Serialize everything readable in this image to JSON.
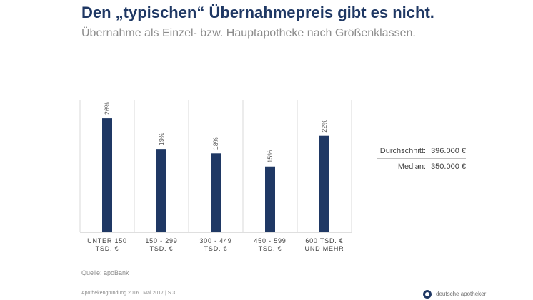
{
  "slide": {
    "title": "Den „typischen“ Übernahmepreis gibt es nicht.",
    "subtitle": "Übernahme als Einzel- bzw. Hauptapotheke nach Größenklassen."
  },
  "chart_data": {
    "type": "bar",
    "title": "",
    "xlabel": "",
    "ylabel": "",
    "ylim": [
      0,
      30
    ],
    "grid": false,
    "categories": [
      [
        "UNTER 150",
        "TSD. €"
      ],
      [
        "150 - 299",
        "TSD. €"
      ],
      [
        "300 - 449",
        "TSD. €"
      ],
      [
        "450 - 599",
        "TSD. €"
      ],
      [
        "600 TSD. €",
        "UND MEHR"
      ]
    ],
    "values": [
      26,
      19,
      18,
      15,
      22
    ],
    "value_suffix": "%",
    "bar_color": "#1f3864",
    "separator_color": "#d9d9d9"
  },
  "stats": {
    "average_label": "Durchschnitt:",
    "average_value": "396.000 €",
    "median_label": "Median:",
    "median_value": "350.000 €"
  },
  "source": "Quelle: apoBank",
  "footer": "Apothekengründung 2016 | Mai 2017 | S.3",
  "logo_text": "deutsche apotheker"
}
